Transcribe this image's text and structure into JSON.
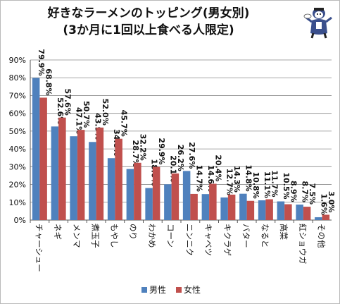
{
  "chart_data": {
    "type": "bar",
    "title": "好きなラーメンのトッピング(男女別)",
    "subtitle": "(3か月に1回以上食べる人限定)",
    "xlabel": "",
    "ylabel": "",
    "ylim": [
      0,
      0.9
    ],
    "yticks": [
      "0%",
      "10%",
      "20%",
      "30%",
      "40%",
      "50%",
      "60%",
      "70%",
      "80%",
      "90%"
    ],
    "grid": true,
    "legend_position": "bottom",
    "categories": [
      "チャーシュー",
      "ネギ",
      "メンマ",
      "煮玉子",
      "もやし",
      "のり",
      "わかめ",
      "コーン",
      "ニンニク",
      "キャベツ",
      "キクラゲ",
      "バター",
      "なると",
      "高菜",
      "紅ショウガ",
      "その他"
    ],
    "series": [
      {
        "name": "男性",
        "color": "#4f81bd",
        "values": [
          0.799,
          0.526,
          0.471,
          0.439,
          0.348,
          0.287,
          0.18,
          0.201,
          0.276,
          0.146,
          0.127,
          0.148,
          0.111,
          0.105,
          0.087,
          0.016
        ],
        "labels": [
          "79.9%",
          "52.6%",
          "47.1%",
          "43.9%",
          "34.8%",
          "28.7%",
          "18.0%",
          "20.1%",
          "27.6%",
          "14.6%",
          "12.7%",
          "14.8%",
          "11.1%",
          "10.5%",
          "8.7%",
          "1.6%"
        ]
      },
      {
        "name": "女性",
        "color": "#c0504d",
        "values": [
          0.688,
          0.576,
          0.507,
          0.52,
          0.457,
          0.322,
          0.299,
          0.262,
          0.147,
          0.204,
          0.143,
          0.108,
          0.117,
          0.089,
          0.075,
          0.03
        ],
        "labels": [
          "68.8%",
          "57.6%",
          "50.7%",
          "52.0%",
          "45.7%",
          "32.2%",
          "29.9%",
          "26.2%",
          "14.7%",
          "20.4%",
          "14.3%",
          "10.8%",
          "11.7%",
          "8.9%",
          "7.5%",
          "3.0%"
        ]
      }
    ]
  }
}
